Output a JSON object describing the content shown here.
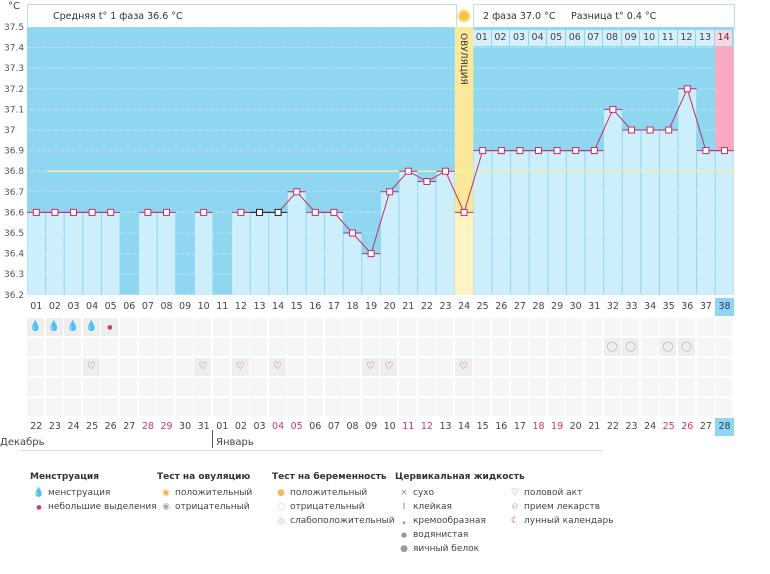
{
  "axis": {
    "unit": "°C",
    "ticks": [
      "37.5",
      "37.4",
      "37.3",
      "37.2",
      "37.1",
      "37",
      "36.9",
      "36.8",
      "36.7",
      "36.6",
      "36.5",
      "36.4",
      "36.3",
      "36.2"
    ]
  },
  "header": {
    "phase1": "Средняя t° 1 фаза 36.6 °C",
    "phase2": "2 фаза 37.0 °C",
    "diff": "Разница t° 0.4 °C",
    "ovulation": "ОВУЛЯЦИЯ"
  },
  "phase2_days": [
    "01",
    "02",
    "03",
    "04",
    "05",
    "06",
    "07",
    "08",
    "09",
    "10",
    "11",
    "12",
    "13",
    "14"
  ],
  "colors": {
    "bg": "#8fd6f0",
    "bar": "#cdeefb",
    "line": "#c0306a",
    "ovulation": "#fbe89a",
    "pink": "#f9aac0"
  },
  "chart_data": {
    "type": "line",
    "ylim": [
      36.2,
      37.5
    ],
    "coverline": 36.8,
    "ovulation_day": 24,
    "days": [
      1,
      2,
      3,
      4,
      5,
      6,
      7,
      8,
      9,
      10,
      11,
      12,
      13,
      14,
      15,
      16,
      17,
      18,
      19,
      20,
      21,
      22,
      23,
      24,
      25,
      26,
      27,
      28,
      29,
      30,
      31,
      32,
      33,
      34,
      35,
      36,
      37,
      38
    ],
    "temps": [
      36.6,
      36.6,
      36.6,
      36.6,
      36.6,
      null,
      36.6,
      36.6,
      null,
      36.6,
      null,
      36.6,
      36.6,
      36.6,
      36.7,
      36.6,
      36.6,
      36.5,
      36.4,
      36.7,
      36.8,
      36.75,
      36.8,
      36.6,
      36.9,
      36.9,
      36.9,
      36.9,
      36.9,
      36.9,
      36.9,
      37.1,
      37.0,
      37.0,
      37.0,
      37.2,
      36.9,
      36.9
    ]
  },
  "cycle_days": [
    "01",
    "02",
    "03",
    "04",
    "05",
    "06",
    "07",
    "08",
    "09",
    "10",
    "11",
    "12",
    "13",
    "14",
    "15",
    "16",
    "17",
    "18",
    "19",
    "20",
    "21",
    "22",
    "23",
    "24",
    "25",
    "26",
    "27",
    "28",
    "29",
    "30",
    "31",
    "32",
    "33",
    "34",
    "35",
    "36",
    "37",
    "38"
  ],
  "dates": [
    "22",
    "23",
    "24",
    "25",
    "26",
    "27",
    "28",
    "29",
    "30",
    "31",
    "01",
    "02",
    "03",
    "04",
    "05",
    "06",
    "07",
    "08",
    "09",
    "10",
    "11",
    "12",
    "13",
    "14",
    "15",
    "16",
    "17",
    "18",
    "19",
    "20",
    "21",
    "22",
    "23",
    "24",
    "25",
    "26",
    "27",
    "28"
  ],
  "weekend_idx": [
    6,
    7,
    13,
    14,
    20,
    21,
    27,
    28,
    34,
    35
  ],
  "months": [
    "Декабрь",
    "Январь"
  ],
  "menstruation": {
    "big": [
      1,
      2,
      3,
      4
    ],
    "small": [
      5
    ]
  },
  "pregnancy_neg": [
    32,
    33,
    35,
    36
  ],
  "intercourse": [
    4,
    10,
    12,
    14,
    19,
    20,
    24
  ],
  "legend": {
    "menstruation": {
      "title": "Менструация",
      "items": [
        "менструация",
        "небольшие выделения"
      ]
    },
    "ovulation_test": {
      "title": "Тест на овуляцию",
      "items": [
        "положительный",
        "отрицательный"
      ]
    },
    "pregnancy_test": {
      "title": "Тест на беременность",
      "items": [
        "положительный",
        "отрицательный",
        "слабоположительный"
      ]
    },
    "cervical": {
      "title": "Цервикальная жидкость",
      "items": [
        "сухо",
        "клейкая",
        "кремообразная",
        "водянистая",
        "яичный белок"
      ]
    },
    "other": {
      "items": [
        "половой акт",
        "прием лекарств",
        "лунный календарь"
      ]
    }
  }
}
